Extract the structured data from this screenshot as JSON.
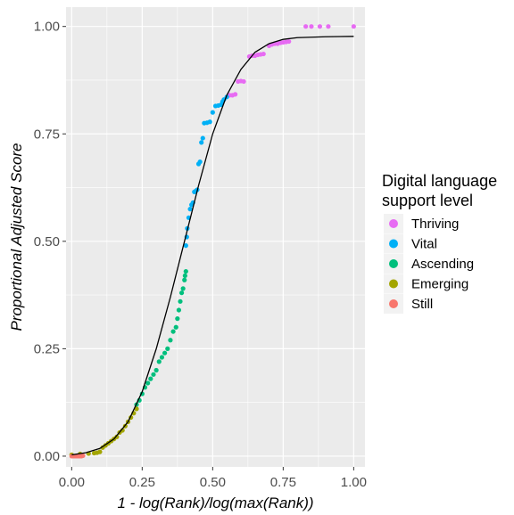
{
  "chart_data": {
    "type": "scatter",
    "xlabel": "1 - log(Rank)/log(max(Rank))",
    "ylabel": "Proportional Adjusted Score",
    "xlim": [
      -0.02,
      1.04
    ],
    "ylim": [
      -0.025,
      1.045
    ],
    "x_ticks": [
      {
        "value": 0.0,
        "label": "0.00"
      },
      {
        "value": 0.25,
        "label": "0.25"
      },
      {
        "value": 0.5,
        "label": "0.50"
      },
      {
        "value": 0.75,
        "label": "0.75"
      },
      {
        "value": 1.0,
        "label": "1.00"
      }
    ],
    "y_ticks": [
      {
        "value": 0.0,
        "label": "0.00"
      },
      {
        "value": 0.25,
        "label": "0.25"
      },
      {
        "value": 0.5,
        "label": "0.50"
      },
      {
        "value": 0.75,
        "label": "0.75"
      },
      {
        "value": 1.0,
        "label": "1.00"
      }
    ],
    "grid": true,
    "panel_background": "#EBEBEB",
    "legend": {
      "title_line1": "Digital language",
      "title_line2": "support level",
      "position": "right"
    },
    "series": [
      {
        "name": "Thriving",
        "color": "#E76BF3",
        "points": [
          [
            0.56,
            0.84
          ],
          [
            0.57,
            0.84
          ],
          [
            0.58,
            0.842
          ],
          [
            0.59,
            0.872
          ],
          [
            0.6,
            0.873
          ],
          [
            0.61,
            0.872
          ],
          [
            0.63,
            0.93
          ],
          [
            0.64,
            0.932
          ],
          [
            0.65,
            0.932
          ],
          [
            0.66,
            0.934
          ],
          [
            0.67,
            0.935
          ],
          [
            0.68,
            0.936
          ],
          [
            0.7,
            0.955
          ],
          [
            0.71,
            0.958
          ],
          [
            0.72,
            0.96
          ],
          [
            0.73,
            0.96
          ],
          [
            0.74,
            0.962
          ],
          [
            0.75,
            0.963
          ],
          [
            0.76,
            0.964
          ],
          [
            0.77,
            0.965
          ],
          [
            0.83,
            1.0
          ],
          [
            0.85,
            1.0
          ],
          [
            0.88,
            1.0
          ],
          [
            0.91,
            1.0
          ],
          [
            1.0,
            1.0
          ]
        ]
      },
      {
        "name": "Vital",
        "color": "#00B0F6",
        "points": [
          [
            0.405,
            0.49
          ],
          [
            0.408,
            0.51
          ],
          [
            0.41,
            0.53
          ],
          [
            0.415,
            0.555
          ],
          [
            0.42,
            0.575
          ],
          [
            0.425,
            0.585
          ],
          [
            0.43,
            0.59
          ],
          [
            0.435,
            0.615
          ],
          [
            0.44,
            0.617
          ],
          [
            0.445,
            0.62
          ],
          [
            0.45,
            0.68
          ],
          [
            0.455,
            0.685
          ],
          [
            0.46,
            0.73
          ],
          [
            0.465,
            0.74
          ],
          [
            0.47,
            0.775
          ],
          [
            0.48,
            0.776
          ],
          [
            0.49,
            0.778
          ],
          [
            0.5,
            0.8
          ],
          [
            0.51,
            0.815
          ],
          [
            0.52,
            0.816
          ],
          [
            0.53,
            0.818
          ],
          [
            0.535,
            0.825
          ],
          [
            0.54,
            0.83
          ],
          [
            0.55,
            0.836
          ]
        ]
      },
      {
        "name": "Ascending",
        "color": "#00BF7D",
        "points": [
          [
            0.23,
            0.12
          ],
          [
            0.24,
            0.13
          ],
          [
            0.25,
            0.145
          ],
          [
            0.26,
            0.16
          ],
          [
            0.27,
            0.17
          ],
          [
            0.28,
            0.18
          ],
          [
            0.29,
            0.19
          ],
          [
            0.3,
            0.2
          ],
          [
            0.31,
            0.22
          ],
          [
            0.32,
            0.23
          ],
          [
            0.33,
            0.24
          ],
          [
            0.34,
            0.25
          ],
          [
            0.35,
            0.27
          ],
          [
            0.36,
            0.29
          ],
          [
            0.37,
            0.3
          ],
          [
            0.375,
            0.32
          ],
          [
            0.38,
            0.34
          ],
          [
            0.385,
            0.36
          ],
          [
            0.39,
            0.38
          ],
          [
            0.395,
            0.39
          ],
          [
            0.4,
            0.41
          ],
          [
            0.402,
            0.42
          ],
          [
            0.405,
            0.43
          ]
        ]
      },
      {
        "name": "Emerging",
        "color": "#A3A500",
        "points": [
          [
            0.0,
            0.003
          ],
          [
            0.03,
            0.005
          ],
          [
            0.06,
            0.006
          ],
          [
            0.08,
            0.007
          ],
          [
            0.09,
            0.008
          ],
          [
            0.1,
            0.01
          ],
          [
            0.11,
            0.02
          ],
          [
            0.12,
            0.025
          ],
          [
            0.13,
            0.03
          ],
          [
            0.14,
            0.035
          ],
          [
            0.15,
            0.04
          ],
          [
            0.16,
            0.045
          ],
          [
            0.17,
            0.055
          ],
          [
            0.18,
            0.06
          ],
          [
            0.19,
            0.07
          ],
          [
            0.2,
            0.08
          ],
          [
            0.21,
            0.09
          ],
          [
            0.22,
            0.1
          ],
          [
            0.23,
            0.11
          ]
        ]
      },
      {
        "name": "Still",
        "color": "#F8766D",
        "points": [
          [
            0.0,
            0.0
          ],
          [
            0.005,
            0.0
          ],
          [
            0.01,
            0.0
          ],
          [
            0.015,
            0.0
          ],
          [
            0.02,
            0.0
          ],
          [
            0.025,
            0.0
          ],
          [
            0.03,
            0.0
          ],
          [
            0.035,
            0.0
          ],
          [
            0.04,
            0.001
          ]
        ]
      }
    ],
    "fit_curve": {
      "color": "#000000",
      "points": [
        [
          0.0,
          0.003
        ],
        [
          0.05,
          0.008
        ],
        [
          0.1,
          0.018
        ],
        [
          0.15,
          0.04
        ],
        [
          0.2,
          0.08
        ],
        [
          0.25,
          0.15
        ],
        [
          0.3,
          0.25
        ],
        [
          0.35,
          0.37
        ],
        [
          0.4,
          0.5
        ],
        [
          0.45,
          0.63
        ],
        [
          0.5,
          0.75
        ],
        [
          0.55,
          0.84
        ],
        [
          0.6,
          0.9
        ],
        [
          0.65,
          0.94
        ],
        [
          0.7,
          0.96
        ],
        [
          0.75,
          0.97
        ],
        [
          0.8,
          0.974
        ],
        [
          0.9,
          0.976
        ],
        [
          1.0,
          0.977
        ]
      ]
    }
  }
}
